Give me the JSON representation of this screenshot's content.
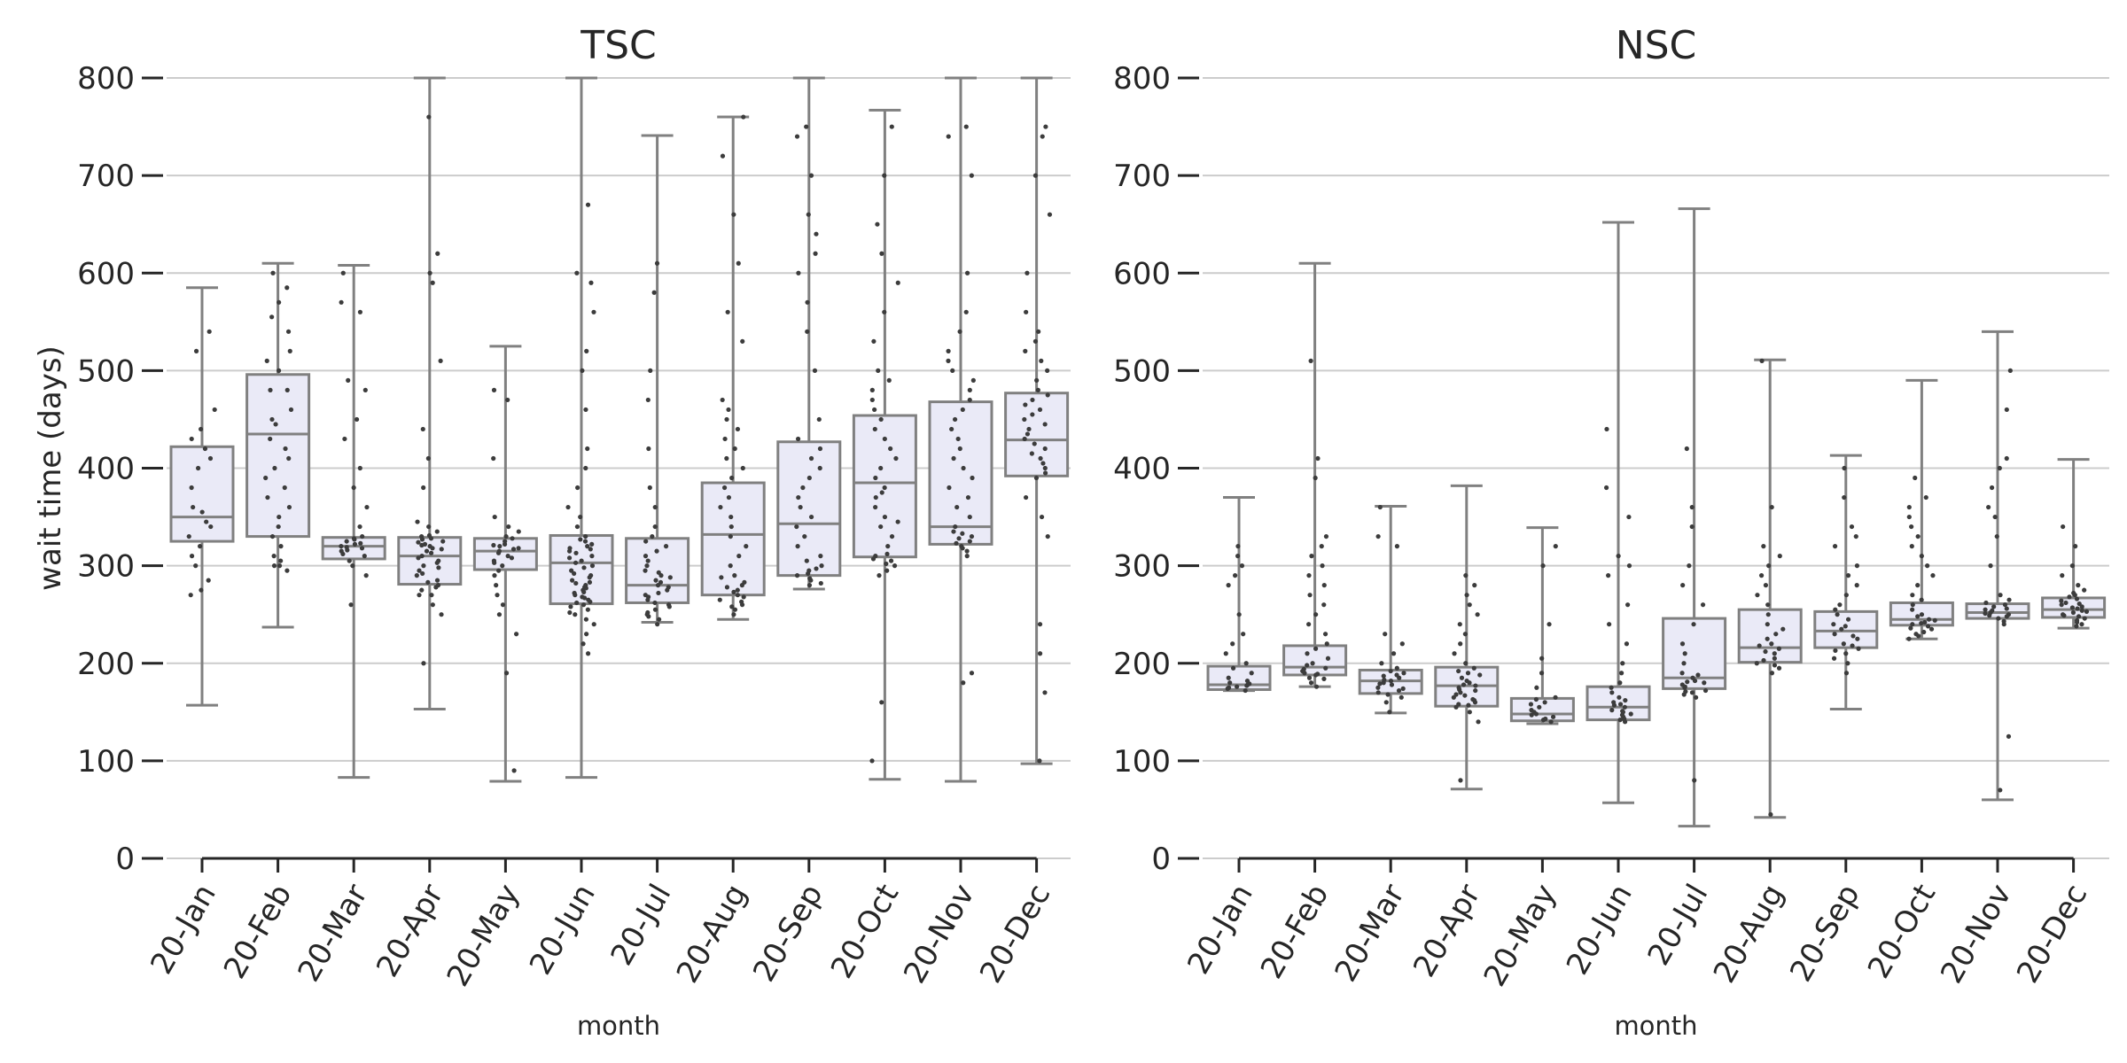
{
  "chart_data": [
    {
      "type": "box",
      "title": "TSC",
      "xlabel": "month",
      "ylabel": "wait time (days)",
      "ylim": [
        0,
        800
      ],
      "yticks": [
        0,
        100,
        200,
        300,
        400,
        500,
        600,
        700,
        800
      ],
      "grid": true,
      "categories": [
        "20-Jan",
        "20-Feb",
        "20-Mar",
        "20-Apr",
        "20-May",
        "20-Jun",
        "20-Jul",
        "20-Aug",
        "20-Sep",
        "20-Oct",
        "20-Nov",
        "20-Dec"
      ],
      "boxes": [
        {
          "min": 157,
          "q1": 325,
          "median": 350,
          "q3": 422,
          "max": 585
        },
        {
          "min": 237,
          "q1": 330,
          "median": 435,
          "q3": 496,
          "max": 610
        },
        {
          "min": 83,
          "q1": 307,
          "median": 320,
          "q3": 329,
          "max": 608
        },
        {
          "min": 153,
          "q1": 281,
          "median": 310,
          "q3": 329,
          "max": 800
        },
        {
          "min": 79,
          "q1": 296,
          "median": 315,
          "q3": 328,
          "max": 525
        },
        {
          "min": 83,
          "q1": 261,
          "median": 303,
          "q3": 331,
          "max": 800
        },
        {
          "min": 242,
          "q1": 262,
          "median": 280,
          "q3": 328,
          "max": 741
        },
        {
          "min": 245,
          "q1": 270,
          "median": 332,
          "q3": 385,
          "max": 760
        },
        {
          "min": 276,
          "q1": 290,
          "median": 343,
          "q3": 427,
          "max": 800
        },
        {
          "min": 81,
          "q1": 309,
          "median": 385,
          "q3": 454,
          "max": 767
        },
        {
          "min": 79,
          "q1": 322,
          "median": 340,
          "q3": 468,
          "max": 800
        },
        {
          "min": 97,
          "q1": 392,
          "median": 429,
          "q3": 477,
          "max": 800
        }
      ],
      "points": [
        [
          285,
          270,
          320,
          340,
          360,
          410,
          430,
          460,
          520,
          540,
          330,
          300,
          345,
          355,
          380,
          400,
          420,
          440,
          275,
          310
        ],
        [
          300,
          300,
          330,
          350,
          370,
          390,
          410,
          430,
          445,
          460,
          480,
          500,
          520,
          540,
          555,
          570,
          585,
          600,
          480,
          450,
          420,
          400,
          380,
          360,
          340,
          320,
          310,
          295,
          305,
          510
        ],
        [
          300,
          305,
          310,
          315,
          318,
          320,
          322,
          325,
          328,
          330,
          340,
          360,
          380,
          400,
          430,
          450,
          480,
          490,
          560,
          570,
          600,
          260,
          290,
          312,
          316,
          319,
          323,
          327
        ],
        [
          200,
          250,
          260,
          270,
          275,
          280,
          285,
          290,
          295,
          300,
          305,
          310,
          315,
          318,
          320,
          322,
          325,
          328,
          330,
          335,
          340,
          345,
          380,
          410,
          440,
          510,
          590,
          600,
          620,
          760,
          270,
          278,
          283,
          292,
          298,
          303,
          308,
          313,
          317,
          321,
          324,
          327,
          331
        ],
        [
          90,
          190,
          230,
          250,
          270,
          290,
          300,
          305,
          310,
          315,
          318,
          320,
          322,
          325,
          328,
          330,
          335,
          340,
          350,
          410,
          470,
          480,
          260,
          280,
          295,
          303,
          308,
          313,
          317,
          321
        ],
        [
          210,
          220,
          230,
          240,
          245,
          250,
          255,
          260,
          262,
          265,
          268,
          270,
          272,
          275,
          278,
          280,
          283,
          285,
          290,
          295,
          300,
          305,
          310,
          315,
          318,
          320,
          325,
          330,
          340,
          350,
          360,
          380,
          400,
          420,
          460,
          500,
          520,
          560,
          590,
          600,
          670,
          252,
          258,
          263,
          267,
          273,
          277,
          282,
          288,
          292,
          298,
          303,
          308,
          313,
          317,
          322,
          327
        ],
        [
          240,
          245,
          250,
          255,
          260,
          265,
          270,
          275,
          280,
          285,
          290,
          295,
          300,
          305,
          310,
          315,
          320,
          325,
          330,
          340,
          360,
          380,
          420,
          470,
          500,
          580,
          610,
          248,
          252,
          258,
          262,
          268,
          272,
          278,
          283,
          288,
          293
        ],
        [
          250,
          255,
          260,
          265,
          270,
          275,
          280,
          290,
          300,
          310,
          320,
          330,
          340,
          350,
          360,
          370,
          380,
          390,
          400,
          410,
          420,
          430,
          440,
          450,
          460,
          470,
          530,
          560,
          610,
          660,
          720,
          760,
          258,
          263,
          268,
          273,
          278,
          283,
          288
        ],
        [
          280,
          285,
          290,
          295,
          300,
          305,
          310,
          320,
          330,
          340,
          350,
          360,
          370,
          380,
          390,
          400,
          410,
          420,
          430,
          450,
          500,
          540,
          570,
          600,
          620,
          640,
          660,
          700,
          740,
          750,
          282,
          287,
          292,
          297
        ],
        [
          100,
          160,
          290,
          295,
          300,
          305,
          310,
          320,
          330,
          340,
          350,
          360,
          370,
          380,
          390,
          400,
          410,
          420,
          430,
          440,
          450,
          460,
          470,
          480,
          490,
          500,
          530,
          560,
          590,
          620,
          650,
          700,
          750,
          302,
          307,
          312,
          345,
          375
        ],
        [
          180,
          190,
          310,
          315,
          320,
          325,
          330,
          335,
          340,
          350,
          360,
          370,
          380,
          390,
          400,
          410,
          420,
          430,
          440,
          450,
          460,
          470,
          480,
          490,
          500,
          510,
          520,
          540,
          560,
          600,
          700,
          740,
          750,
          318,
          323,
          328,
          333
        ],
        [
          100,
          170,
          210,
          240,
          330,
          350,
          370,
          390,
          400,
          410,
          420,
          430,
          440,
          450,
          460,
          470,
          480,
          490,
          500,
          510,
          520,
          530,
          540,
          560,
          600,
          660,
          700,
          740,
          750,
          395,
          405,
          415,
          425,
          435,
          445,
          455,
          465,
          475
        ]
      ]
    },
    {
      "type": "box",
      "title": "NSC",
      "xlabel": "month",
      "ylabel": "",
      "ylim": [
        0,
        800
      ],
      "yticks": [
        0,
        100,
        200,
        300,
        400,
        500,
        600,
        700,
        800
      ],
      "grid": true,
      "categories": [
        "20-Jan",
        "20-Feb",
        "20-Mar",
        "20-Apr",
        "20-May",
        "20-Jun",
        "20-Jul",
        "20-Aug",
        "20-Sep",
        "20-Oct",
        "20-Nov",
        "20-Dec"
      ],
      "boxes": [
        {
          "min": 172,
          "q1": 173,
          "median": 178,
          "q3": 197,
          "max": 370
        },
        {
          "min": 176,
          "q1": 188,
          "median": 196,
          "q3": 218,
          "max": 610
        },
        {
          "min": 149,
          "q1": 169,
          "median": 182,
          "q3": 193,
          "max": 361
        },
        {
          "min": 71,
          "q1": 156,
          "median": 177,
          "q3": 196,
          "max": 382
        },
        {
          "min": 138,
          "q1": 141,
          "median": 148,
          "q3": 164,
          "max": 339
        },
        {
          "min": 57,
          "q1": 142,
          "median": 155,
          "q3": 176,
          "max": 652
        },
        {
          "min": 33,
          "q1": 174,
          "median": 185,
          "q3": 246,
          "max": 666
        },
        {
          "min": 42,
          "q1": 201,
          "median": 216,
          "q3": 255,
          "max": 511
        },
        {
          "min": 153,
          "q1": 216,
          "median": 233,
          "q3": 253,
          "max": 413
        },
        {
          "min": 225,
          "q1": 239,
          "median": 245,
          "q3": 262,
          "max": 490
        },
        {
          "min": 60,
          "q1": 246,
          "median": 252,
          "q3": 261,
          "max": 540
        },
        {
          "min": 236,
          "q1": 247,
          "median": 255,
          "q3": 267,
          "max": 409
        }
      ],
      "points": [
        [
          172,
          174,
          176,
          178,
          180,
          182,
          185,
          190,
          195,
          200,
          210,
          220,
          230,
          250,
          280,
          290,
          300,
          310,
          320,
          175,
          177,
          179
        ],
        [
          176,
          180,
          185,
          188,
          190,
          192,
          195,
          198,
          200,
          205,
          210,
          215,
          220,
          230,
          240,
          250,
          260,
          270,
          280,
          290,
          300,
          310,
          320,
          330,
          390,
          410,
          510,
          184,
          189,
          194
        ],
        [
          150,
          160,
          165,
          170,
          172,
          175,
          178,
          180,
          182,
          185,
          188,
          190,
          192,
          195,
          200,
          210,
          220,
          230,
          320,
          330,
          360,
          168,
          174,
          179,
          183,
          187
        ],
        [
          80,
          140,
          150,
          155,
          158,
          160,
          162,
          165,
          168,
          170,
          172,
          175,
          178,
          180,
          182,
          185,
          188,
          190,
          192,
          195,
          200,
          210,
          220,
          230,
          240,
          250,
          260,
          270,
          280,
          290,
          157,
          163,
          167,
          173,
          177
        ],
        [
          140,
          142,
          145,
          148,
          150,
          152,
          155,
          158,
          160,
          163,
          165,
          175,
          190,
          205,
          240,
          300,
          320,
          143,
          147
        ],
        [
          140,
          142,
          145,
          148,
          150,
          152,
          155,
          158,
          160,
          162,
          165,
          170,
          175,
          180,
          190,
          200,
          220,
          240,
          260,
          290,
          300,
          310,
          350,
          380,
          440,
          143,
          147,
          151,
          157
        ],
        [
          80,
          165,
          168,
          170,
          172,
          175,
          178,
          180,
          182,
          185,
          188,
          190,
          200,
          210,
          220,
          240,
          260,
          280,
          300,
          340,
          360,
          420,
          171,
          176,
          181
        ],
        [
          45,
          190,
          195,
          200,
          205,
          210,
          215,
          220,
          225,
          230,
          235,
          240,
          250,
          260,
          270,
          280,
          290,
          300,
          310,
          320,
          360,
          510,
          198,
          203,
          212,
          218
        ],
        [
          190,
          200,
          205,
          210,
          215,
          220,
          225,
          230,
          235,
          240,
          245,
          250,
          255,
          260,
          270,
          280,
          290,
          300,
          320,
          330,
          340,
          370,
          400,
          213,
          218,
          228,
          238
        ],
        [
          225,
          228,
          230,
          232,
          235,
          238,
          240,
          242,
          245,
          248,
          250,
          255,
          260,
          265,
          270,
          280,
          290,
          300,
          310,
          320,
          330,
          340,
          350,
          360,
          370,
          390,
          236,
          241,
          244
        ],
        [
          70,
          125,
          240,
          243,
          246,
          248,
          250,
          252,
          254,
          256,
          258,
          260,
          262,
          265,
          270,
          300,
          330,
          350,
          360,
          380,
          400,
          410,
          460,
          500,
          249,
          251,
          255
        ],
        [
          238,
          240,
          242,
          244,
          246,
          248,
          250,
          252,
          254,
          256,
          258,
          260,
          262,
          264,
          266,
          268,
          270,
          272,
          275,
          280,
          290,
          300,
          320,
          340,
          249,
          253,
          257,
          261
        ]
      ]
    }
  ]
}
